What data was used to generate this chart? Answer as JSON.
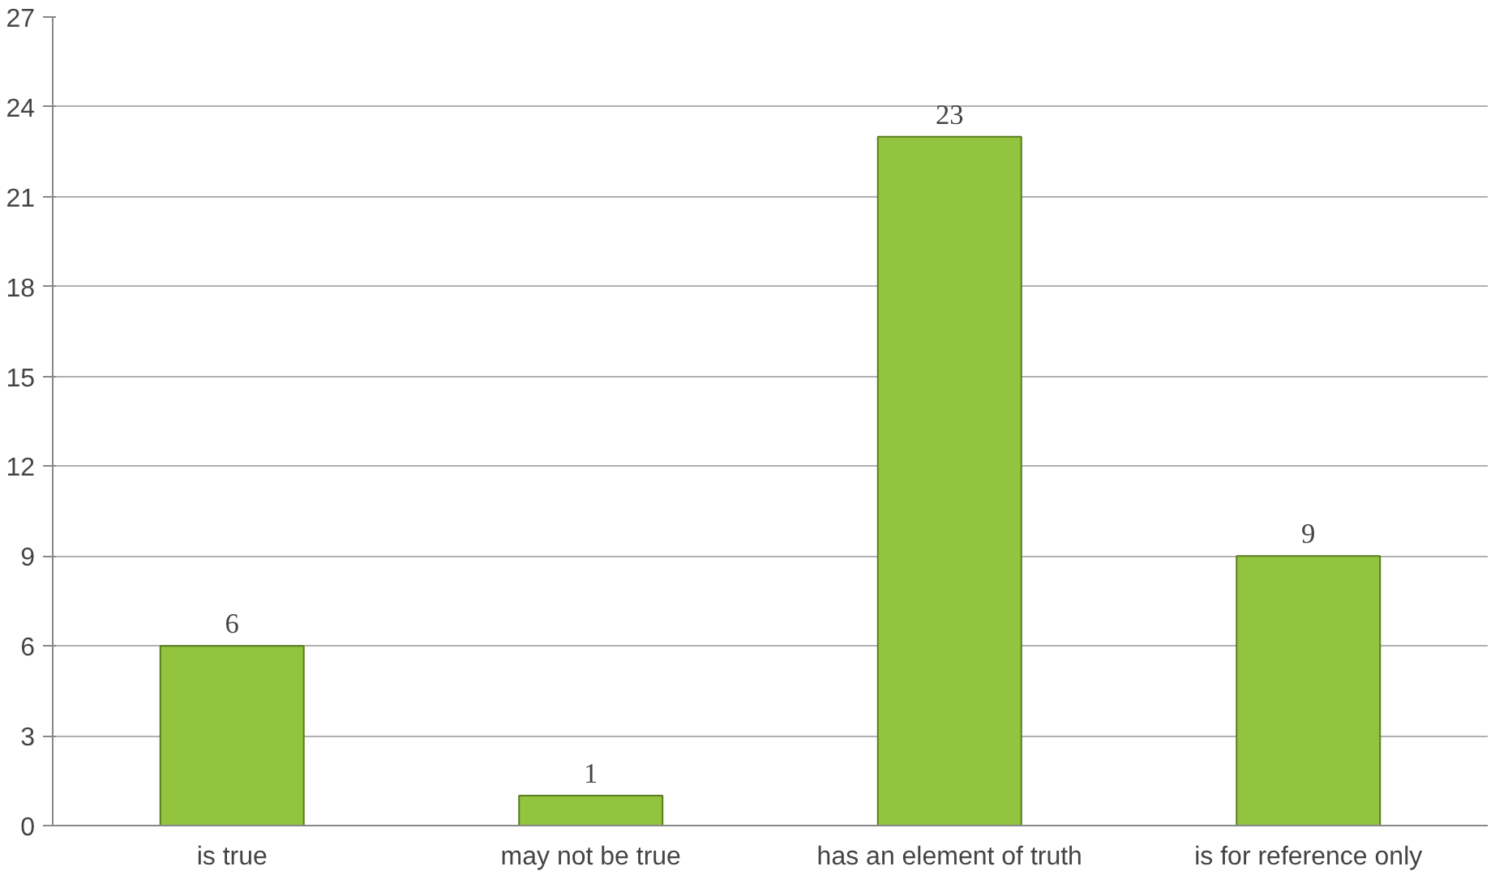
{
  "chart_data": {
    "type": "bar",
    "categories": [
      "is true",
      "may not be true",
      "has an element of truth",
      "is for reference only"
    ],
    "values": [
      6,
      1,
      23,
      9
    ],
    "color": "#92c43f",
    "ylim": [
      0,
      27
    ],
    "yticks": [
      0,
      3,
      6,
      9,
      12,
      15,
      18,
      21,
      24,
      27
    ],
    "grid": "y",
    "data_labels": true
  }
}
